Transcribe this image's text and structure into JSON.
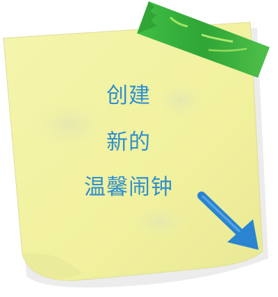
{
  "note": {
    "line1": "创建",
    "line2": "新的",
    "line3": "温馨闹钟"
  },
  "colors": {
    "paper": "#f3f3a4",
    "paper_shadow": "#d8d98c",
    "text": "#2e8fce",
    "tape": "#35a83b",
    "arrow": "#2a84cf"
  },
  "icons": {
    "tape": "tape-icon",
    "arrow": "arrow-down-right-icon"
  }
}
